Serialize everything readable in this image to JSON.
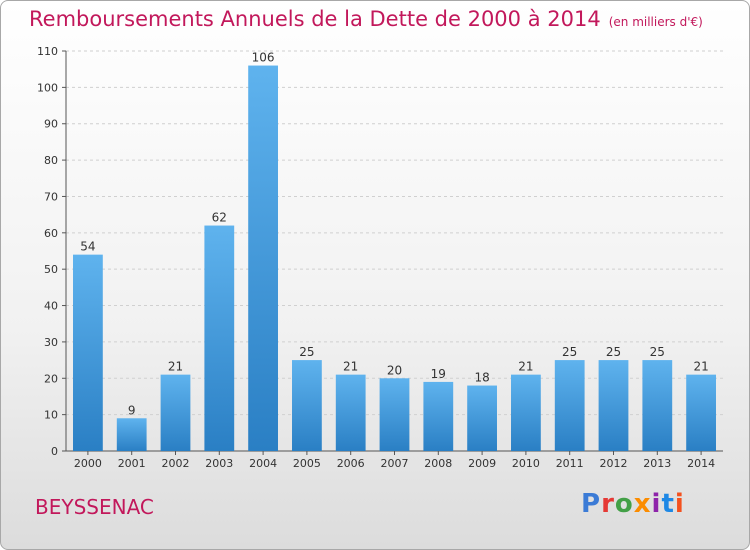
{
  "header": {
    "title": "Remboursements Annuels de la Dette de 2000 à 2014",
    "unit": "(en milliers d'€)"
  },
  "commune": "BEYSSENAC",
  "logo": {
    "text": "Proxiti",
    "colors": [
      "#3b7bd6",
      "#e53935",
      "#43a047",
      "#fb8c00",
      "#8e24aa",
      "#1e88e5",
      "#f4511e"
    ]
  },
  "colors": {
    "bar": "#3f97df",
    "title": "#c2185b"
  },
  "chart_data": {
    "type": "bar",
    "title": "Remboursements Annuels de la Dette de 2000 à 2014",
    "subtitle": "(en milliers d'€)",
    "categories": [
      "2000",
      "2001",
      "2002",
      "2003",
      "2004",
      "2005",
      "2006",
      "2007",
      "2008",
      "2009",
      "2010",
      "2011",
      "2012",
      "2013",
      "2014"
    ],
    "values": [
      54,
      9,
      21,
      62,
      106,
      25,
      21,
      20,
      19,
      18,
      21,
      25,
      25,
      25,
      21
    ],
    "ylim": [
      0,
      110
    ],
    "yticks": [
      0,
      10,
      20,
      30,
      40,
      50,
      60,
      70,
      80,
      90,
      100,
      110
    ],
    "grid": true,
    "xlabel": "",
    "ylabel": ""
  }
}
